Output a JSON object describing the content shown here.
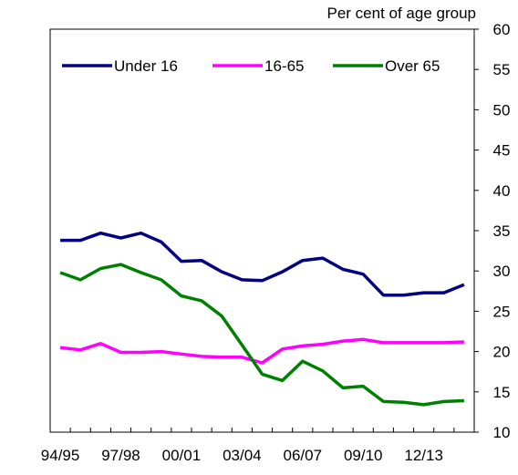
{
  "chart_data": {
    "type": "line",
    "y_label": "Per cent of  age group",
    "categories": [
      "94/95",
      null,
      null,
      "97/98",
      null,
      null,
      "00/01",
      null,
      null,
      "03/04",
      null,
      null,
      "06/07",
      null,
      null,
      "09/10",
      null,
      null,
      "12/13",
      null,
      null
    ],
    "series": [
      {
        "name": "Under 16",
        "color": "#000080",
        "values": [
          33.8,
          33.8,
          34.7,
          34.1,
          34.7,
          33.6,
          31.2,
          31.3,
          29.9,
          28.9,
          28.8,
          29.9,
          31.3,
          31.6,
          30.2,
          29.6,
          27.0,
          27.0,
          27.3,
          27.3,
          28.3
        ]
      },
      {
        "name": "16-65",
        "color": "#ff00ff",
        "values": [
          20.5,
          20.2,
          21.0,
          19.9,
          19.9,
          20.0,
          19.7,
          19.4,
          19.3,
          19.3,
          18.6,
          20.3,
          20.7,
          20.9,
          21.3,
          21.5,
          21.1,
          21.1,
          21.1,
          21.1,
          21.2
        ]
      },
      {
        "name": "Over 65",
        "color": "#008000",
        "values": [
          29.8,
          28.9,
          30.3,
          30.8,
          29.8,
          28.9,
          26.9,
          26.3,
          24.4,
          20.8,
          17.2,
          16.4,
          18.8,
          17.6,
          15.5,
          15.7,
          13.8,
          13.7,
          13.4,
          13.8,
          13.9
        ]
      }
    ],
    "ylim": [
      10,
      60
    ],
    "yticks": [
      10,
      15,
      20,
      25,
      30,
      35,
      40,
      45,
      50,
      55,
      60
    ],
    "y_axis_side": "right",
    "legend": "top-left"
  }
}
